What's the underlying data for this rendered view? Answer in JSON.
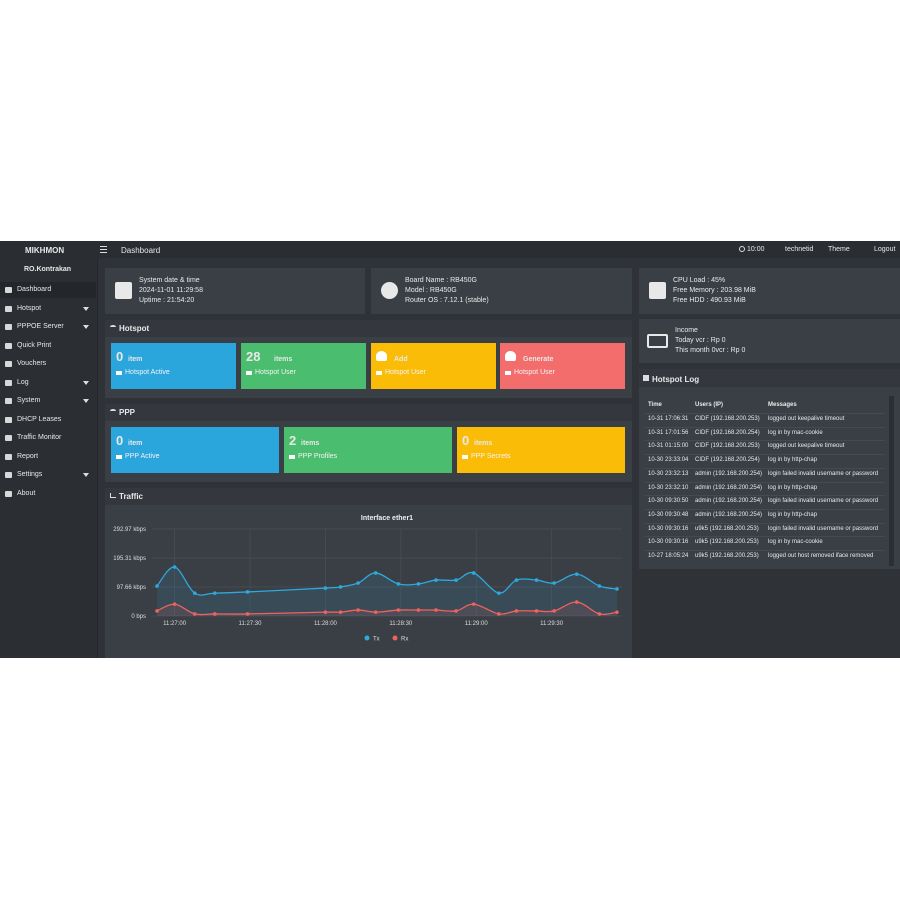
{
  "topbar": {
    "brand": "MIKHMON",
    "page": "Dashboard",
    "clock": "10:00",
    "user": "technetid",
    "theme": "Theme",
    "logout": "Logout"
  },
  "sidebar": {
    "router": "RO.Kontrakan",
    "menu": [
      "Dashboard",
      "Hotspot",
      "PPPOE Server",
      "Quick Print",
      "Vouchers",
      "Log",
      "System",
      "DHCP Leases",
      "Traffic Monitor",
      "Report",
      "Settings",
      "About"
    ]
  },
  "system_cards": [
    {
      "lines": [
        "System date & time",
        "2024-11-01 11:29:58",
        "Uptime : 21:54:20"
      ]
    },
    {
      "lines": [
        "Board Name : RB450G",
        "Model : RB450G",
        "Router OS : 7.12.1 (stable)"
      ]
    },
    {
      "lines": [
        "CPU Load : 45%",
        "Free Memory : 203.98 MiB",
        "Free HDD : 490.93 MiB"
      ]
    }
  ],
  "hotspot": {
    "title": "Hotspot",
    "tiles": [
      {
        "count": 0,
        "unit": "item",
        "label": "Hotspot Active"
      },
      {
        "count": 28,
        "unit": "items",
        "label": "Hotspot User"
      },
      {
        "head": "Add",
        "label": "Hotspot User"
      },
      {
        "head": "Generate",
        "label": "Hotspot User"
      }
    ]
  },
  "ppp": {
    "title": "PPP",
    "tiles": [
      {
        "count": 0,
        "unit": "item",
        "label": "PPP Active"
      },
      {
        "count": 2,
        "unit": "items",
        "label": "PPP Profiles"
      },
      {
        "count": 0,
        "unit": "items",
        "label": "PPP Secrets"
      }
    ]
  },
  "income": {
    "lines": [
      "Income",
      "Today vcr : Rp 0",
      "This month 0vcr : Rp 0"
    ]
  },
  "hotspot_log": {
    "title": "Hotspot Log",
    "columns": [
      "Time",
      "Users (IP)",
      "Messages"
    ],
    "rows": [
      [
        "10-31 17:06:31",
        "CIDF (192.168.200.253)",
        "logged out keepalive timeout"
      ],
      [
        "10-31 17:01:56",
        "CIDF (192.168.200.254)",
        "log in by mac-cookie"
      ],
      [
        "10-31 01:15:00",
        "CIDF (192.168.200.253)",
        "logged out keepalive timeout"
      ],
      [
        "10-30 23:33:04",
        "CIDF (192.168.200.254)",
        "log in by http-chap"
      ],
      [
        "10-30 23:32:13",
        "admin (192.168.200.254)",
        "login failed invalid username or password"
      ],
      [
        "10-30 23:32:10",
        "admin (192.168.200.254)",
        "log in by http-chap"
      ],
      [
        "10-30 09:30:50",
        "admin (192.168.200.254)",
        "login failed invalid username or password"
      ],
      [
        "10-30 09:30:48",
        "admin (192.168.200.254)",
        "log in by http-chap"
      ],
      [
        "10-30 09:30:16",
        "u9k5 (192.168.200.253)",
        "login failed invalid username or password"
      ],
      [
        "10-30 09:30:16",
        "u9k5 (192.168.200.253)",
        "log in by mac-cookie"
      ],
      [
        "10-27 18:05:24",
        "u9k5 (192.168.200.253)",
        "logged out host removed iface removed"
      ]
    ]
  },
  "traffic_title": "Traffic",
  "chart_data": {
    "type": "line",
    "title": "Interface ether1",
    "x": [
      41213,
      41220,
      41228,
      41236,
      41249,
      41280,
      41286,
      41293,
      41300,
      41309,
      41317,
      41324,
      41332,
      41339,
      41349,
      41356,
      41364,
      41371,
      41380,
      41389,
      41396
    ],
    "series": [
      {
        "name": "Tx",
        "color": "#2fa8dc",
        "values": [
          101,
          165,
          77,
          77,
          81,
          94,
          98,
          111,
          145,
          108,
          108,
          121,
          121,
          145,
          77,
          121,
          121,
          111,
          141,
          101,
          91
        ]
      },
      {
        "name": "Rx",
        "color": "#f0625d",
        "values": [
          17,
          40,
          7,
          7,
          7,
          13,
          13,
          20,
          13,
          20,
          20,
          20,
          17,
          40,
          7,
          17,
          17,
          17,
          47,
          7,
          13
        ]
      }
    ],
    "xlim": [
      41211,
      41398
    ],
    "xticks": [
      {
        "value": 41220,
        "label": "11:27:00"
      },
      {
        "value": 41250,
        "label": "11:27:30"
      },
      {
        "value": 41280,
        "label": "11:28:00"
      },
      {
        "value": 41310,
        "label": "11:28:30"
      },
      {
        "value": 41340,
        "label": "11:29:00"
      },
      {
        "value": 41370,
        "label": "11:29:30"
      }
    ],
    "ylim": [
      0,
      292.97
    ],
    "yticks": [
      {
        "value": 0,
        "label": "0 bps"
      },
      {
        "value": 97.66,
        "label": "97.66 kbps"
      },
      {
        "value": 195.31,
        "label": "195.31 kbps"
      },
      {
        "value": 292.97,
        "label": "292.97 kbps"
      }
    ],
    "grid": true,
    "legend": "bottom"
  }
}
